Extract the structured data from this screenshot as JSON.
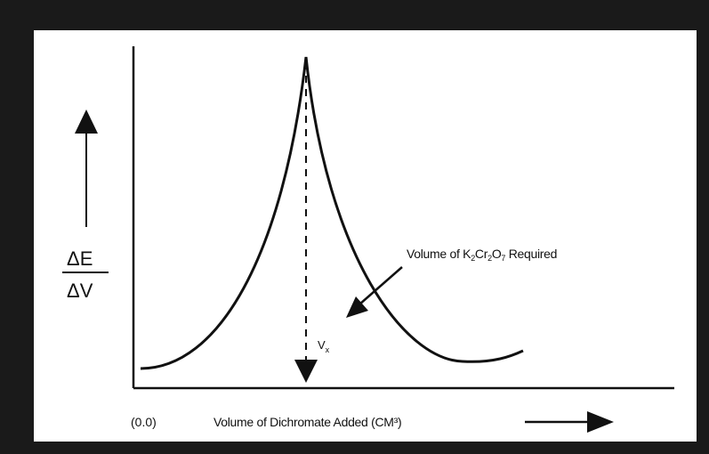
{
  "axis": {
    "y_label_top": "ΔE",
    "y_label_bottom": "ΔV",
    "x_origin": "(0.0)",
    "x_label": "Volume of Dichromate Added (CM³)"
  },
  "annotation": {
    "label_prefix": "Volume of K",
    "label_sub1": "2",
    "label_mid1": "Cr",
    "label_sub2": "2",
    "label_mid2": "O",
    "label_sub3": "7",
    "label_suffix": " Required",
    "marker_main": "V",
    "marker_sub": "x"
  },
  "colors": {
    "frame": "#1a1a1a",
    "panel": "#ffffff",
    "ink": "#111111"
  }
}
